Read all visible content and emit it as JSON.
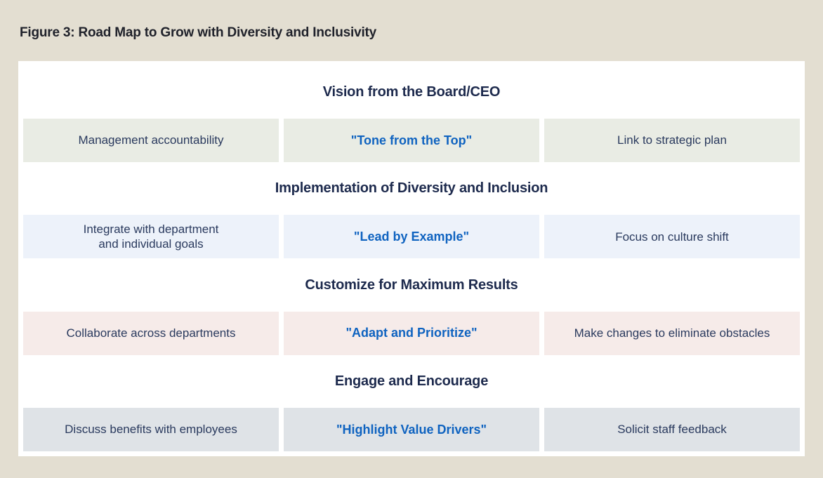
{
  "figure": {
    "title": "Figure 3: Road Map to Grow with Diversity and Inclusivity",
    "sections": [
      {
        "heading": "Vision from the Board/CEO",
        "left": "Management accountability",
        "center": "\"Tone from the Top\"",
        "right": "Link to strategic plan",
        "box_color": "#e9ece4"
      },
      {
        "heading": "Implementation of Diversity and Inclusion",
        "left": "Integrate with department\nand individual goals",
        "center": "\"Lead by Example\"",
        "right": "Focus on culture shift",
        "box_color": "#edf2fa"
      },
      {
        "heading": "Customize for Maximum Results",
        "left": "Collaborate across departments",
        "center": "\"Adapt and Prioritize\"",
        "right": "Make changes to eliminate obstacles",
        "box_color": "#f6ebe9"
      },
      {
        "heading": "Engage and Encourage",
        "left": "Discuss benefits with employees",
        "center": "\"Highlight Value Drivers\"",
        "right": "Solicit staff feedback",
        "box_color": "#dfe3e7"
      }
    ]
  },
  "colors": {
    "page_background": "#e3ded1",
    "panel_background": "#ffffff",
    "figure_title_text": "#20222b",
    "heading_text": "#1d2a4d",
    "body_text": "#2a3a5e",
    "accent_blue": "#0f63c0"
  }
}
